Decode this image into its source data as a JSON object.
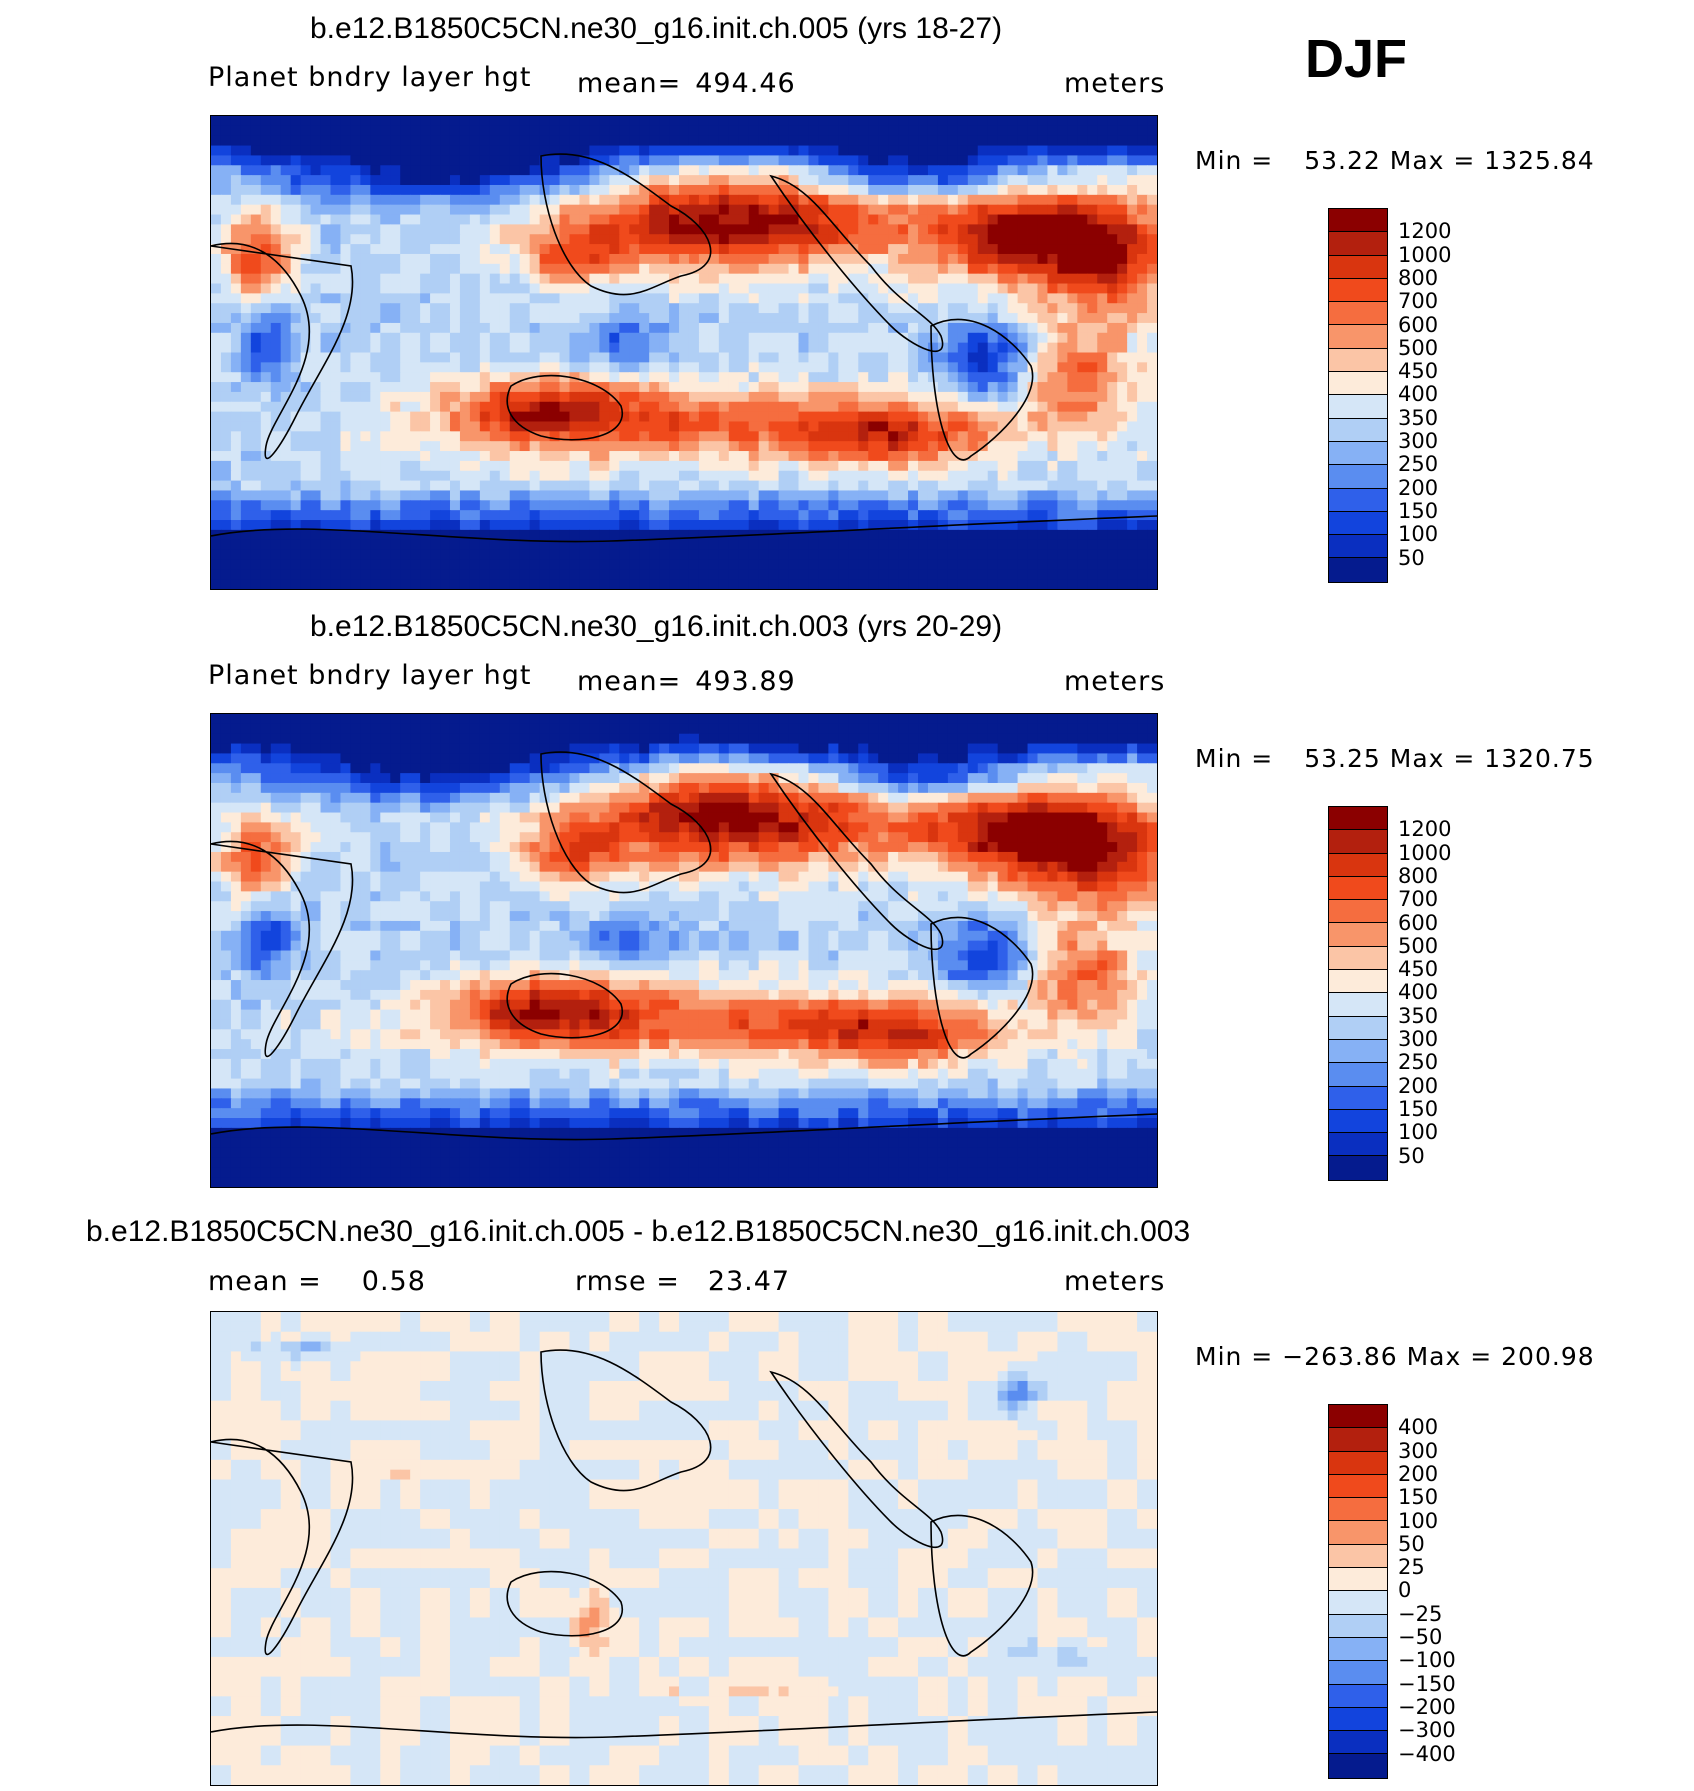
{
  "season": "DJF",
  "colors": {
    "abs": [
      "#8b0000",
      "#b3200e",
      "#d9350f",
      "#f04a1c",
      "#f56d3f",
      "#f8956a",
      "#fbc5a6",
      "#fdebda",
      "#d5e6f7",
      "#b0cff5",
      "#86b1f5",
      "#5a8df0",
      "#2f60ea",
      "#1244dd",
      "#0a2fc0",
      "#051b8e"
    ],
    "diff": [
      "#8b0000",
      "#b3200e",
      "#d9350f",
      "#f04a1c",
      "#f56d3f",
      "#f8956a",
      "#fbc5a6",
      "#fdebda",
      "#d5e6f7",
      "#b0cff5",
      "#86b1f5",
      "#5a8df0",
      "#2f60ea",
      "#1244dd",
      "#0a2fc0",
      "#051b8e"
    ]
  },
  "panels": [
    {
      "title": "b.e12.B1850C5CN.ne30_g16.init.ch.005 (yrs 18-27)",
      "left_label": "Planet bndry layer hgt",
      "mid_label": "mean=",
      "mid_value": "494.46",
      "right_label": "meters",
      "min_label": "Min =",
      "min_value": "53.22",
      "max_label": "Max =",
      "max_value": "1325.84",
      "colorbar_labels": [
        "1200",
        "1000",
        "800",
        "700",
        "600",
        "500",
        "450",
        "400",
        "350",
        "300",
        "250",
        "200",
        "150",
        "100",
        "50"
      ]
    },
    {
      "title": "b.e12.B1850C5CN.ne30_g16.init.ch.003 (yrs 20-29)",
      "left_label": "Planet bndry layer hgt",
      "mid_label": "mean=",
      "mid_value": "493.89",
      "right_label": "meters",
      "min_label": "Min =",
      "min_value": "53.25",
      "max_label": "Max =",
      "max_value": "1320.75",
      "colorbar_labels": [
        "1200",
        "1000",
        "800",
        "700",
        "600",
        "500",
        "450",
        "400",
        "350",
        "300",
        "250",
        "200",
        "150",
        "100",
        "50"
      ]
    },
    {
      "title": "b.e12.B1850C5CN.ne30_g16.init.ch.005 - b.e12.B1850C5CN.ne30_g16.init.ch.003",
      "left_label": "mean =",
      "left_value": "0.58",
      "mid_label": "rmse =",
      "mid_value": "23.47",
      "right_label": "meters",
      "min_label": "Min =",
      "min_value": "−263.86",
      "max_label": "Max =",
      "max_value": "200.98",
      "colorbar_labels": [
        "400",
        "300",
        "200",
        "150",
        "100",
        "50",
        "25",
        "0",
        "−25",
        "−50",
        "−100",
        "−150",
        "−200",
        "−300",
        "−400"
      ]
    }
  ],
  "chart_data": [
    {
      "type": "heatmap",
      "title": "b.e12.B1850C5CN.ne30_g16.init.ch.005 (yrs 18-27)",
      "variable": "Planet bndry layer hgt",
      "units": "meters",
      "mean": 494.46,
      "min": 53.22,
      "max": 1325.84,
      "contour_levels": [
        50,
        100,
        150,
        200,
        250,
        300,
        350,
        400,
        450,
        500,
        600,
        700,
        800,
        1000,
        1200
      ]
    },
    {
      "type": "heatmap",
      "title": "b.e12.B1850C5CN.ne30_g16.init.ch.003 (yrs 20-29)",
      "variable": "Planet bndry layer hgt",
      "units": "meters",
      "mean": 493.89,
      "min": 53.25,
      "max": 1320.75,
      "contour_levels": [
        50,
        100,
        150,
        200,
        250,
        300,
        350,
        400,
        450,
        500,
        600,
        700,
        800,
        1000,
        1200
      ]
    },
    {
      "type": "heatmap",
      "title": "b.e12.B1850C5CN.ne30_g16.init.ch.005 - b.e12.B1850C5CN.ne30_g16.init.ch.003",
      "units": "meters",
      "mean": 0.58,
      "rmse": 23.47,
      "min": -263.86,
      "max": 200.98,
      "contour_levels": [
        -400,
        -300,
        -200,
        -150,
        -100,
        -50,
        -25,
        0,
        25,
        50,
        100,
        150,
        200,
        300,
        400
      ]
    }
  ]
}
